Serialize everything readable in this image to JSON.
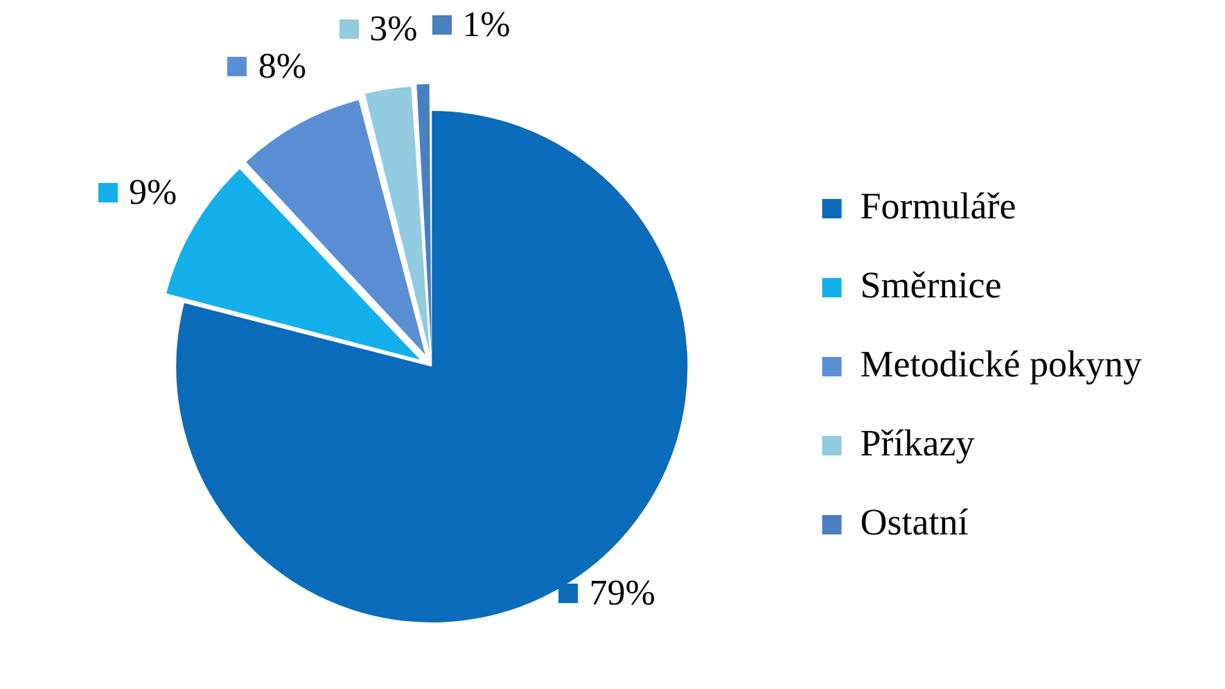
{
  "chart_data": {
    "type": "pie",
    "categories": [
      "Formuláře",
      "Směrnice",
      "Metodické pokyny",
      "Příkazy",
      "Ostatní"
    ],
    "values": [
      79,
      9,
      8,
      3,
      1
    ],
    "value_labels": [
      "79%",
      "9%",
      "8%",
      "3%",
      "1%"
    ],
    "colors": [
      "#0a6cba",
      "#13b0ec",
      "#5b8fd5",
      "#93cbe0",
      "#4a7fc2"
    ],
    "legend": "right"
  }
}
